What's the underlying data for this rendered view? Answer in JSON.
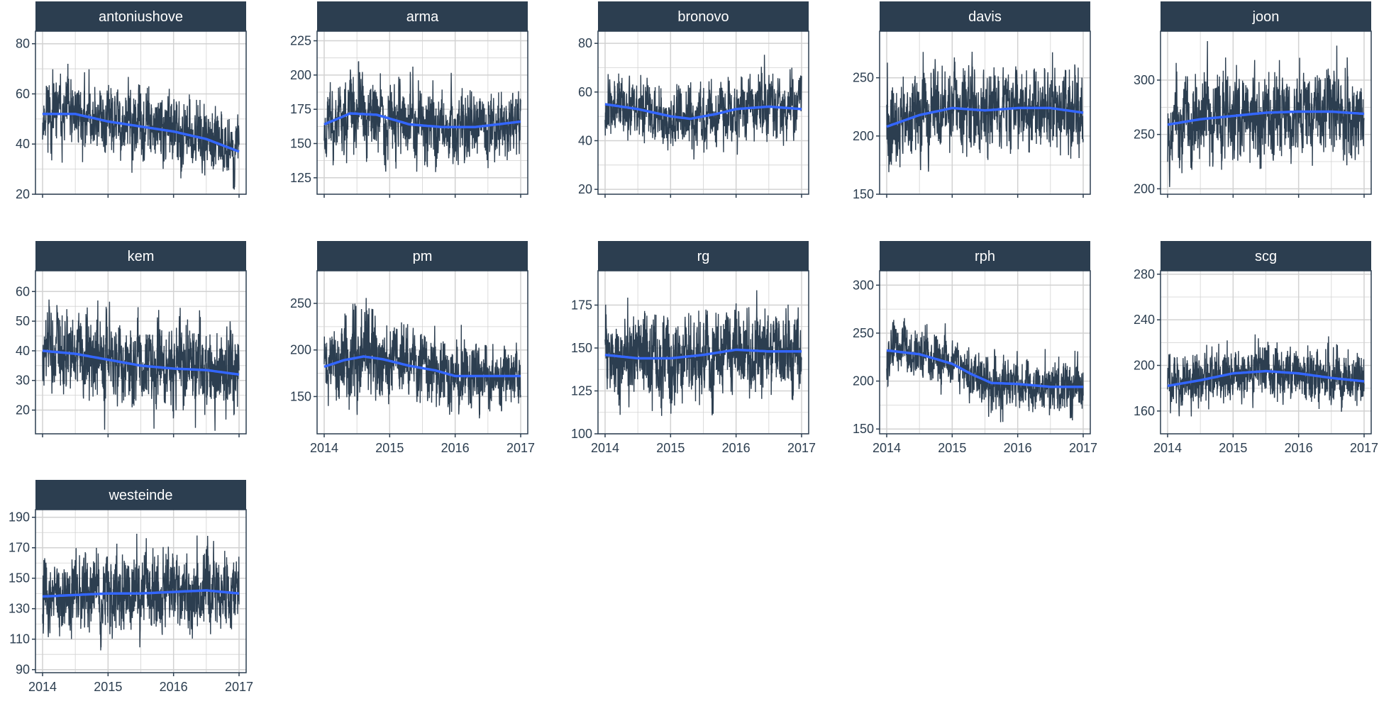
{
  "colors": {
    "series": "#2c3e50",
    "smooth": "#3366ff",
    "strip": "#2c3e50",
    "strip_text": "#ffffff",
    "grid": "#d2d2d2",
    "border": "#2c3e50"
  },
  "chart_data": [
    {
      "type": "line",
      "title": "antoniushove",
      "xlim": [
        2014,
        2017
      ],
      "ylim": [
        20,
        85
      ],
      "yticks": [
        20,
        40,
        60,
        80
      ],
      "xticks": [
        2014,
        2015,
        2016,
        2017
      ],
      "show_x_labels": false,
      "trend": [
        [
          2014.0,
          52
        ],
        [
          2014.5,
          52
        ],
        [
          2015.0,
          49
        ],
        [
          2015.5,
          47
        ],
        [
          2016.0,
          45
        ],
        [
          2016.5,
          42
        ],
        [
          2017.0,
          37
        ]
      ],
      "spread": [
        [
          2014.0,
          9
        ],
        [
          2017.0,
          8
        ]
      ],
      "noise": 8,
      "seed": 11
    },
    {
      "type": "line",
      "title": "arma",
      "xlim": [
        2014,
        2017
      ],
      "ylim": [
        113,
        232
      ],
      "yticks": [
        125,
        150,
        175,
        200,
        225
      ],
      "xticks": [
        2014,
        2015,
        2016,
        2017
      ],
      "show_x_labels": false,
      "trend": [
        [
          2014.0,
          164
        ],
        [
          2014.4,
          172
        ],
        [
          2014.8,
          171
        ],
        [
          2015.3,
          164
        ],
        [
          2015.8,
          162
        ],
        [
          2016.3,
          162
        ],
        [
          2017.0,
          166
        ]
      ],
      "spread": [
        [
          2014.0,
          18
        ],
        [
          2017.0,
          15
        ]
      ],
      "noise": 18,
      "seed": 23
    },
    {
      "type": "line",
      "title": "bronovo",
      "xlim": [
        2014,
        2017
      ],
      "ylim": [
        18,
        85
      ],
      "yticks": [
        20,
        40,
        60,
        80
      ],
      "xticks": [
        2014,
        2015,
        2016,
        2017
      ],
      "show_x_labels": false,
      "trend": [
        [
          2014.0,
          55
        ],
        [
          2014.5,
          53
        ],
        [
          2015.0,
          50
        ],
        [
          2015.3,
          49
        ],
        [
          2015.7,
          51
        ],
        [
          2016.0,
          53
        ],
        [
          2016.5,
          54
        ],
        [
          2017.0,
          53
        ]
      ],
      "spread": [
        [
          2014.0,
          8
        ],
        [
          2017.0,
          8
        ]
      ],
      "noise": 8,
      "seed": 37
    },
    {
      "type": "line",
      "title": "davis",
      "xlim": [
        2014,
        2017
      ],
      "ylim": [
        150,
        290
      ],
      "yticks": [
        150,
        200,
        250
      ],
      "xticks": [
        2014,
        2015,
        2016,
        2017
      ],
      "show_x_labels": false,
      "trend": [
        [
          2014.0,
          208
        ],
        [
          2014.5,
          218
        ],
        [
          2015.0,
          224
        ],
        [
          2015.5,
          222
        ],
        [
          2016.0,
          224
        ],
        [
          2016.5,
          224
        ],
        [
          2017.0,
          220
        ]
      ],
      "spread": [
        [
          2014.0,
          22
        ],
        [
          2017.0,
          22
        ]
      ],
      "noise": 20,
      "seed": 41
    },
    {
      "type": "line",
      "title": "joon",
      "xlim": [
        2014,
        2017
      ],
      "ylim": [
        195,
        345
      ],
      "yticks": [
        200,
        250,
        300
      ],
      "xticks": [
        2014,
        2015,
        2016,
        2017
      ],
      "show_x_labels": false,
      "trend": [
        [
          2014.0,
          259
        ],
        [
          2014.5,
          264
        ],
        [
          2015.0,
          267
        ],
        [
          2015.5,
          270
        ],
        [
          2016.0,
          271
        ],
        [
          2016.5,
          271
        ],
        [
          2017.0,
          269
        ]
      ],
      "spread": [
        [
          2014.0,
          25
        ],
        [
          2017.0,
          25
        ]
      ],
      "noise": 22,
      "seed": 53
    },
    {
      "type": "line",
      "title": "kem",
      "xlim": [
        2014,
        2017
      ],
      "ylim": [
        12,
        67
      ],
      "yticks": [
        20,
        30,
        40,
        50,
        60
      ],
      "xticks": [
        2014,
        2015,
        2016,
        2017
      ],
      "show_x_labels": false,
      "trend": [
        [
          2014.0,
          40
        ],
        [
          2014.5,
          39
        ],
        [
          2015.0,
          37
        ],
        [
          2015.5,
          35
        ],
        [
          2016.0,
          34
        ],
        [
          2016.5,
          33.5
        ],
        [
          2017.0,
          32
        ]
      ],
      "spread": [
        [
          2014.0,
          9
        ],
        [
          2017.0,
          9
        ]
      ],
      "noise": 9,
      "seed": 61
    },
    {
      "type": "line",
      "title": "pm",
      "xlim": [
        2014,
        2017
      ],
      "ylim": [
        110,
        285
      ],
      "yticks": [
        150,
        200,
        250
      ],
      "xticks": [
        2014,
        2015,
        2016,
        2017
      ],
      "show_x_labels": true,
      "trend": [
        [
          2014.0,
          182
        ],
        [
          2014.3,
          189
        ],
        [
          2014.6,
          193
        ],
        [
          2014.9,
          190
        ],
        [
          2015.3,
          183
        ],
        [
          2015.7,
          178
        ],
        [
          2016.0,
          172
        ],
        [
          2016.5,
          172
        ],
        [
          2017.0,
          172
        ]
      ],
      "spread": [
        [
          2014.0,
          22
        ],
        [
          2014.6,
          35
        ],
        [
          2015.0,
          22
        ],
        [
          2017.0,
          20
        ]
      ],
      "noise": 22,
      "seed": 71
    },
    {
      "type": "line",
      "title": "rg",
      "xlim": [
        2014,
        2017
      ],
      "ylim": [
        100,
        195
      ],
      "yticks": [
        100,
        125,
        150,
        175
      ],
      "xticks": [
        2014,
        2015,
        2016,
        2017
      ],
      "show_x_labels": true,
      "trend": [
        [
          2014.0,
          146
        ],
        [
          2014.5,
          144
        ],
        [
          2015.0,
          144
        ],
        [
          2015.5,
          146
        ],
        [
          2016.0,
          149
        ],
        [
          2016.5,
          148
        ],
        [
          2017.0,
          148
        ]
      ],
      "spread": [
        [
          2014.0,
          16
        ],
        [
          2017.0,
          16
        ]
      ],
      "noise": 15,
      "seed": 83
    },
    {
      "type": "line",
      "title": "rph",
      "xlim": [
        2014,
        2017
      ],
      "ylim": [
        145,
        315
      ],
      "yticks": [
        150,
        200,
        250,
        300
      ],
      "xticks": [
        2014,
        2015,
        2016,
        2017
      ],
      "show_x_labels": true,
      "trend": [
        [
          2014.0,
          232
        ],
        [
          2014.5,
          228
        ],
        [
          2015.0,
          218
        ],
        [
          2015.3,
          207
        ],
        [
          2015.6,
          198
        ],
        [
          2016.0,
          197
        ],
        [
          2016.5,
          194
        ],
        [
          2017.0,
          194
        ]
      ],
      "spread": [
        [
          2014.0,
          16
        ],
        [
          2017.0,
          18
        ]
      ],
      "noise": 15,
      "seed": 97
    },
    {
      "type": "line",
      "title": "scg",
      "xlim": [
        2014,
        2017
      ],
      "ylim": [
        140,
        283
      ],
      "yticks": [
        160,
        200,
        240,
        280
      ],
      "xticks": [
        2014,
        2015,
        2016,
        2017
      ],
      "show_x_labels": true,
      "trend": [
        [
          2014.0,
          182
        ],
        [
          2014.5,
          187
        ],
        [
          2015.0,
          193
        ],
        [
          2015.5,
          195
        ],
        [
          2016.0,
          193
        ],
        [
          2016.5,
          189
        ],
        [
          2017.0,
          186
        ]
      ],
      "spread": [
        [
          2014.0,
          15
        ],
        [
          2017.0,
          15
        ]
      ],
      "noise": 14,
      "seed": 103
    },
    {
      "type": "line",
      "title": "westeinde",
      "xlim": [
        2014,
        2017
      ],
      "ylim": [
        88,
        195
      ],
      "yticks": [
        90,
        110,
        130,
        150,
        170,
        190
      ],
      "xticks": [
        2014,
        2015,
        2016,
        2017
      ],
      "show_x_labels": true,
      "trend": [
        [
          2014.0,
          138
        ],
        [
          2014.5,
          139
        ],
        [
          2015.0,
          140
        ],
        [
          2015.5,
          140
        ],
        [
          2016.0,
          141
        ],
        [
          2016.5,
          142
        ],
        [
          2017.0,
          140
        ]
      ],
      "spread": [
        [
          2014.0,
          16
        ],
        [
          2017.0,
          16
        ]
      ],
      "noise": 16,
      "seed": 113
    }
  ]
}
